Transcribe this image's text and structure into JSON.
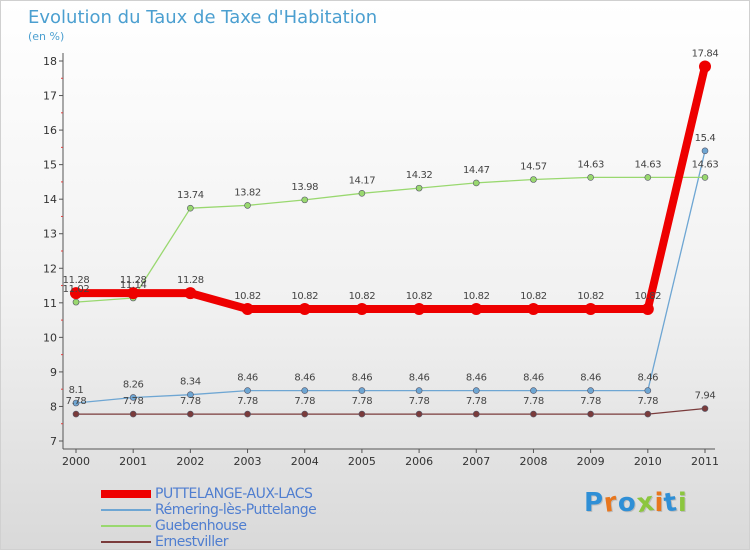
{
  "title": "Evolution du Taux de Taxe d'Habitation",
  "subtitle": "(en %)",
  "brand": "Proxiti",
  "brand_colors": [
    "#2f8fd6",
    "#e8761d",
    "#2f8fd6",
    "#8cc63f",
    "#e8761d",
    "#2f8fd6",
    "#8cc63f"
  ],
  "chart_data": {
    "type": "line",
    "title": "Evolution du Taux de Taxe d'Habitation",
    "ylabel": "(en %)",
    "xlabel": "",
    "x": [
      "2000",
      "2001",
      "2002",
      "2003",
      "2004",
      "2005",
      "2006",
      "2007",
      "2008",
      "2009",
      "2010",
      "2011"
    ],
    "ylim": [
      7,
      18
    ],
    "yticks": [
      "7",
      "8",
      "9",
      "10",
      "11",
      "12",
      "13",
      "14",
      "15",
      "16",
      "17",
      "18"
    ],
    "series": [
      {
        "name": "PUTTELANGE-AUX-LACS",
        "color": "#ee0000",
        "values": [
          11.28,
          11.28,
          11.28,
          10.82,
          10.82,
          10.82,
          10.82,
          10.82,
          10.82,
          10.82,
          10.82,
          17.84
        ],
        "labels": [
          "11.28",
          "11.28",
          "11.28",
          "10.82",
          "10.82",
          "10.82",
          "10.82",
          "10.82",
          "10.82",
          "10.82",
          "10.82",
          "17.84"
        ]
      },
      {
        "name": "Rémering-lès-Puttelange",
        "color": "#6ea6d3",
        "values": [
          8.1,
          8.26,
          8.34,
          8.46,
          8.46,
          8.46,
          8.46,
          8.46,
          8.46,
          8.46,
          8.46,
          15.4
        ],
        "labels": [
          "8.1",
          "8.26",
          "8.34",
          "8.46",
          "8.46",
          "8.46",
          "8.46",
          "8.46",
          "8.46",
          "8.46",
          "8.46",
          "15.4"
        ]
      },
      {
        "name": "Guebenhouse",
        "color": "#99d86f",
        "values": [
          11.02,
          11.14,
          13.74,
          13.82,
          13.98,
          14.17,
          14.32,
          14.47,
          14.57,
          14.63,
          14.63,
          14.63
        ],
        "labels": [
          "11.02",
          "11.14",
          "13.74",
          "13.82",
          "13.98",
          "14.17",
          "14.32",
          "14.47",
          "14.57",
          "14.63",
          "14.63",
          "14.63"
        ]
      },
      {
        "name": "Ernestviller",
        "color": "#7a3b3b",
        "values": [
          7.78,
          7.78,
          7.78,
          7.78,
          7.78,
          7.78,
          7.78,
          7.78,
          7.78,
          7.78,
          7.78,
          7.94
        ],
        "labels": [
          "7.78",
          "7.78",
          "7.78",
          "7.78",
          "7.78",
          "7.78",
          "7.78",
          "7.78",
          "7.78",
          "7.78",
          "7.78",
          "7.94"
        ]
      }
    ]
  }
}
